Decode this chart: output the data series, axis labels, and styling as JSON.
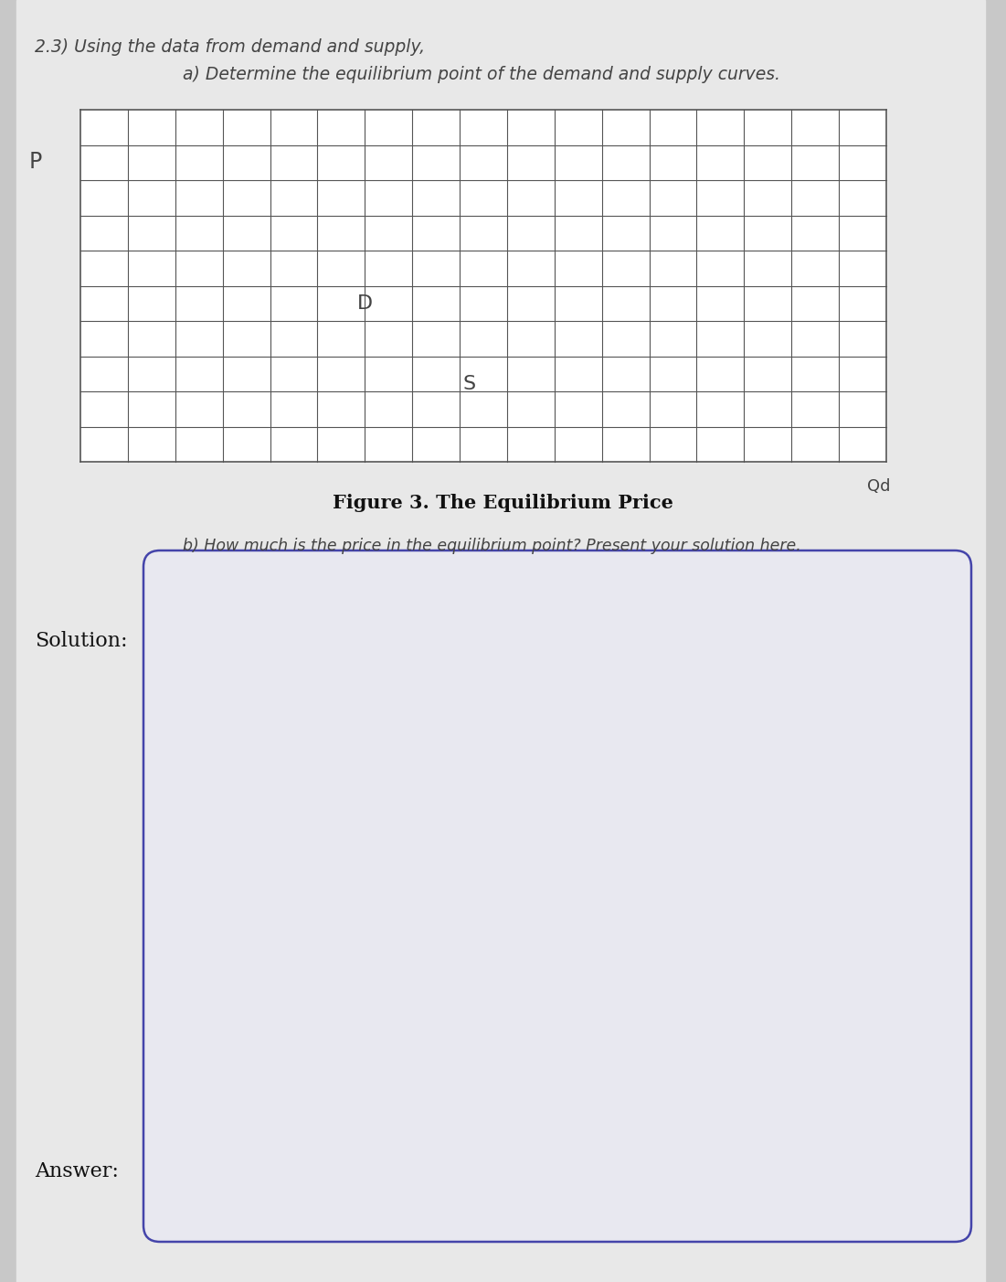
{
  "bg_color": "#c8c8c8",
  "page_bg": "#e8e8e8",
  "header_line1": "2.3) Using the data from demand and supply,",
  "header_line2": "a) Determine the equilibrium point of the demand and supply curves.",
  "p_label": "P",
  "d_label": "D",
  "s_label": "S",
  "qd_label": "Qd",
  "figure_caption": "Figure 3. The Equilibrium Price",
  "question_b": "b) How much is the price in the equilibrium point? Present your solution here.",
  "solution_label": "Solution:",
  "answer_label": "Answer:",
  "grid_rows": 10,
  "grid_cols": 17,
  "text_color": "#444444",
  "grid_line_color": "#555555",
  "box_edge_color": "#4444aa",
  "box_face_color": "#e8e8f0"
}
